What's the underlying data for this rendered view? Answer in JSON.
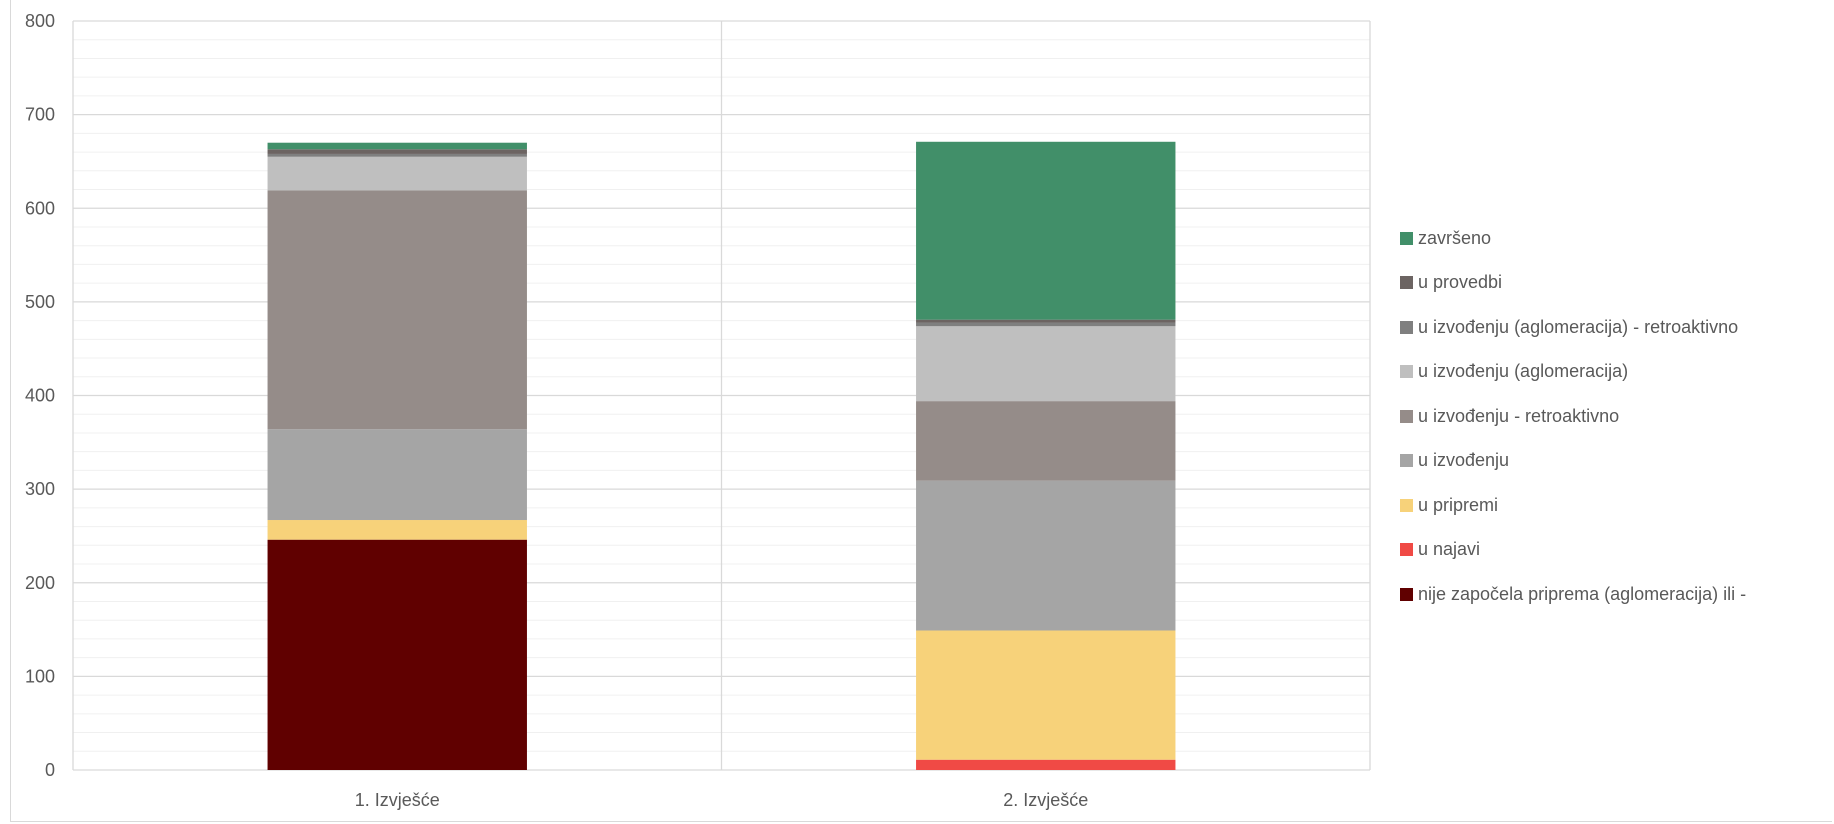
{
  "chart_data": {
    "type": "bar",
    "stacked": true,
    "categories": [
      "1. Izvješće",
      "2. Izvješće"
    ],
    "ylim": [
      0,
      800
    ],
    "yticks": [
      0,
      100,
      200,
      300,
      400,
      500,
      600,
      700,
      800
    ],
    "grid": true,
    "legend_position": "right",
    "series": [
      {
        "name": "nije započela priprema (aglomeracija) ili -",
        "color": "#600000",
        "values": [
          246,
          0
        ]
      },
      {
        "name": "u najavi",
        "color": "#F04A45",
        "values": [
          0,
          11
        ]
      },
      {
        "name": "u pripremi",
        "color": "#F7D27A",
        "values": [
          21,
          138
        ]
      },
      {
        "name": "u izvođenju",
        "color": "#A5A5A5",
        "values": [
          97,
          160
        ]
      },
      {
        "name": "u izvođenju - retroaktivno",
        "color": "#958C89",
        "values": [
          255,
          85
        ]
      },
      {
        "name": "u izvođenju (aglomeracija)",
        "color": "#BFBFBF",
        "values": [
          36,
          80
        ]
      },
      {
        "name": "u izvođenju (aglomeracija) - retroaktivno",
        "color": "#7F7F7F",
        "values": [
          3,
          4
        ]
      },
      {
        "name": "u provedbi",
        "color": "#6C6462",
        "values": [
          5,
          3
        ]
      },
      {
        "name": "završeno",
        "color": "#418F69",
        "values": [
          7,
          190
        ]
      }
    ]
  }
}
